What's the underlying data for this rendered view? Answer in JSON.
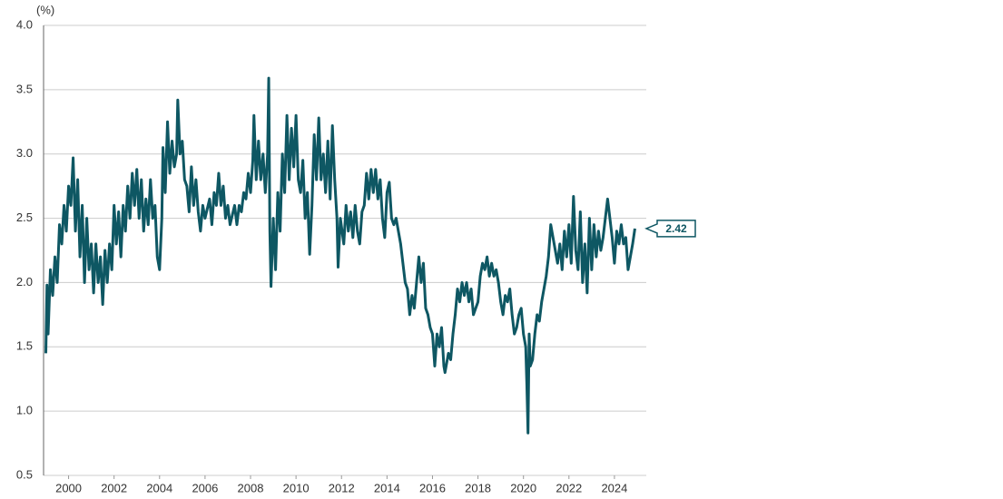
{
  "chart_data": {
    "type": "line",
    "y_label": "(%)",
    "color": "#0e5763",
    "grid": true,
    "xlim": [
      1998.9,
      2025.4
    ],
    "xticks": [
      2000,
      2002,
      2004,
      2006,
      2008,
      2010,
      2012,
      2014,
      2016,
      2018,
      2020,
      2022,
      2024
    ],
    "ylim": [
      0.5,
      4.0
    ],
    "yticks": [
      {
        "value": 0.5,
        "label": "0.5"
      },
      {
        "value": 1,
        "label": "1.0"
      },
      {
        "value": 1.5,
        "label": "1.5"
      },
      {
        "value": 2,
        "label": "2.0"
      },
      {
        "value": 2.5,
        "label": "2.5"
      },
      {
        "value": 3,
        "label": "3.0"
      },
      {
        "value": 3.5,
        "label": "3.5"
      },
      {
        "value": 4,
        "label": "4.0"
      }
    ],
    "x": [
      1999.0,
      1999.05,
      1999.1,
      1999.2,
      1999.3,
      1999.4,
      1999.5,
      1999.6,
      1999.7,
      1999.8,
      1999.9,
      2000.0,
      2000.1,
      2000.2,
      2000.3,
      2000.4,
      2000.5,
      2000.6,
      2000.7,
      2000.8,
      2000.9,
      2001.0,
      2001.1,
      2001.2,
      2001.3,
      2001.4,
      2001.5,
      2001.6,
      2001.7,
      2001.8,
      2001.9,
      2002.0,
      2002.1,
      2002.2,
      2002.3,
      2002.4,
      2002.5,
      2002.6,
      2002.7,
      2002.8,
      2002.9,
      2003.0,
      2003.1,
      2003.2,
      2003.3,
      2003.4,
      2003.5,
      2003.6,
      2003.7,
      2003.8,
      2003.9,
      2004.0,
      2004.1,
      2004.15,
      2004.25,
      2004.35,
      2004.45,
      2004.55,
      2004.65,
      2004.75,
      2004.8,
      2004.9,
      2005.0,
      2005.1,
      2005.2,
      2005.3,
      2005.4,
      2005.5,
      2005.6,
      2005.7,
      2005.8,
      2005.9,
      2006.0,
      2006.2,
      2006.3,
      2006.4,
      2006.5,
      2006.6,
      2006.7,
      2006.8,
      2006.9,
      2007.0,
      2007.1,
      2007.3,
      2007.4,
      2007.5,
      2007.6,
      2007.7,
      2007.8,
      2007.9,
      2008.0,
      2008.1,
      2008.15,
      2008.25,
      2008.35,
      2008.45,
      2008.55,
      2008.65,
      2008.75,
      2008.8,
      2008.85,
      2008.9,
      2009.0,
      2009.1,
      2009.2,
      2009.3,
      2009.4,
      2009.5,
      2009.6,
      2009.7,
      2009.8,
      2009.9,
      2010.0,
      2010.1,
      2010.2,
      2010.3,
      2010.4,
      2010.5,
      2010.6,
      2010.7,
      2010.8,
      2010.9,
      2011.0,
      2011.1,
      2011.2,
      2011.3,
      2011.4,
      2011.5,
      2011.6,
      2011.7,
      2011.8,
      2011.85,
      2011.95,
      2012.1,
      2012.2,
      2012.3,
      2012.4,
      2012.5,
      2012.6,
      2012.7,
      2012.8,
      2012.9,
      2013.0,
      2013.1,
      2013.2,
      2013.3,
      2013.4,
      2013.5,
      2013.6,
      2013.7,
      2013.8,
      2013.9,
      2014.0,
      2014.1,
      2014.2,
      2014.3,
      2014.4,
      2014.5,
      2014.6,
      2014.7,
      2014.8,
      2014.9,
      2015.0,
      2015.1,
      2015.2,
      2015.3,
      2015.4,
      2015.5,
      2015.6,
      2015.7,
      2015.8,
      2015.9,
      2016.0,
      2016.1,
      2016.2,
      2016.3,
      2016.4,
      2016.5,
      2016.55,
      2016.7,
      2016.8,
      2016.9,
      2017.0,
      2017.1,
      2017.2,
      2017.3,
      2017.4,
      2017.5,
      2017.6,
      2017.7,
      2017.8,
      2017.9,
      2018.0,
      2018.1,
      2018.2,
      2018.3,
      2018.4,
      2018.5,
      2018.6,
      2018.7,
      2018.8,
      2018.9,
      2019.0,
      2019.1,
      2019.2,
      2019.3,
      2019.4,
      2019.5,
      2019.6,
      2019.7,
      2019.8,
      2019.9,
      2020.0,
      2020.1,
      2020.15,
      2020.2,
      2020.25,
      2020.3,
      2020.4,
      2020.5,
      2020.6,
      2020.7,
      2020.8,
      2020.9,
      2021.0,
      2021.1,
      2021.2,
      2021.3,
      2021.4,
      2021.5,
      2021.6,
      2021.7,
      2021.8,
      2021.9,
      2022.0,
      2022.1,
      2022.2,
      2022.3,
      2022.4,
      2022.5,
      2022.6,
      2022.7,
      2022.8,
      2022.9,
      2023.0,
      2023.1,
      2023.2,
      2023.3,
      2023.4,
      2023.5,
      2023.6,
      2023.7,
      2023.8,
      2023.9,
      2024.0,
      2024.1,
      2024.2,
      2024.3,
      2024.4,
      2024.5,
      2024.6,
      2024.7,
      2024.8,
      2024.9
    ],
    "values": [
      1.45,
      1.98,
      1.6,
      2.1,
      1.9,
      2.2,
      2.0,
      2.45,
      2.3,
      2.6,
      2.4,
      2.75,
      2.6,
      2.97,
      2.4,
      2.8,
      2.2,
      2.6,
      2.0,
      2.5,
      2.1,
      2.3,
      1.92,
      2.3,
      2.0,
      2.2,
      1.83,
      2.25,
      2.0,
      2.3,
      2.1,
      2.6,
      2.3,
      2.55,
      2.2,
      2.6,
      2.4,
      2.75,
      2.5,
      2.85,
      2.6,
      2.88,
      2.5,
      2.8,
      2.4,
      2.65,
      2.45,
      2.8,
      2.5,
      2.6,
      2.2,
      2.1,
      2.5,
      3.05,
      2.7,
      3.25,
      2.85,
      3.1,
      2.9,
      3.0,
      3.42,
      3.0,
      3.1,
      2.8,
      2.75,
      2.55,
      2.9,
      2.6,
      2.8,
      2.55,
      2.4,
      2.6,
      2.5,
      2.65,
      2.45,
      2.7,
      2.6,
      2.85,
      2.6,
      2.75,
      2.5,
      2.6,
      2.45,
      2.6,
      2.45,
      2.6,
      2.55,
      2.7,
      2.65,
      2.85,
      2.7,
      2.95,
      3.3,
      2.8,
      3.1,
      2.8,
      3.0,
      2.7,
      3.0,
      3.59,
      2.4,
      1.97,
      2.5,
      2.1,
      2.7,
      2.4,
      3.0,
      2.7,
      3.3,
      2.8,
      3.2,
      2.9,
      3.3,
      2.8,
      2.7,
      2.95,
      2.5,
      2.7,
      2.22,
      2.6,
      3.15,
      2.8,
      3.28,
      2.8,
      3.0,
      2.7,
      3.1,
      2.65,
      3.22,
      2.8,
      2.5,
      2.12,
      2.5,
      2.3,
      2.6,
      2.4,
      2.55,
      2.35,
      2.6,
      2.4,
      2.3,
      2.55,
      2.6,
      2.85,
      2.65,
      2.88,
      2.7,
      2.88,
      2.65,
      2.8,
      2.5,
      2.35,
      2.7,
      2.78,
      2.5,
      2.45,
      2.5,
      2.4,
      2.3,
      2.15,
      2.0,
      1.95,
      1.75,
      1.9,
      1.8,
      2.0,
      2.2,
      2.0,
      2.15,
      1.8,
      1.75,
      1.65,
      1.6,
      1.35,
      1.6,
      1.5,
      1.65,
      1.35,
      1.3,
      1.45,
      1.4,
      1.6,
      1.75,
      1.95,
      1.85,
      2.0,
      1.9,
      2.0,
      1.85,
      1.95,
      1.75,
      1.8,
      1.85,
      2.05,
      2.15,
      2.1,
      2.2,
      2.05,
      2.15,
      2.05,
      2.1,
      2.0,
      1.85,
      1.75,
      1.9,
      1.85,
      1.95,
      1.75,
      1.6,
      1.65,
      1.75,
      1.8,
      1.6,
      1.5,
      1.2,
      0.83,
      1.6,
      1.35,
      1.4,
      1.6,
      1.75,
      1.7,
      1.85,
      1.95,
      2.05,
      2.2,
      2.45,
      2.35,
      2.25,
      2.15,
      2.3,
      2.1,
      2.4,
      2.2,
      2.45,
      2.15,
      2.67,
      2.25,
      2.1,
      2.55,
      2.0,
      2.3,
      1.92,
      2.5,
      2.1,
      2.45,
      2.2,
      2.4,
      2.25,
      2.35,
      2.5,
      2.65,
      2.5,
      2.35,
      2.15,
      2.4,
      2.3,
      2.45,
      2.3,
      2.35,
      2.1,
      2.2,
      2.3,
      2.42
    ]
  }
}
